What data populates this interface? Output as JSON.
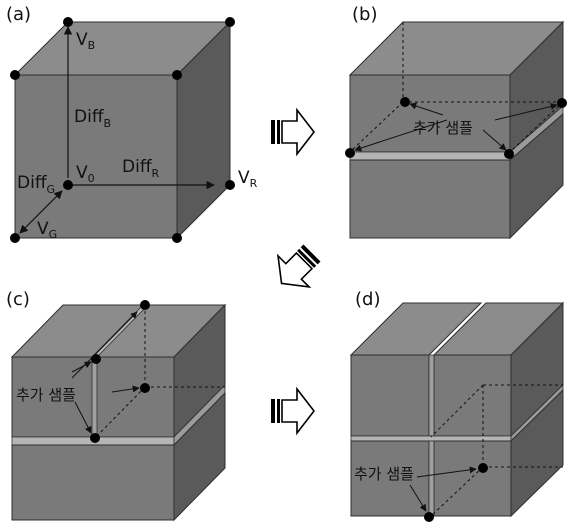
{
  "panels": {
    "a": "(a)",
    "b": "(b)",
    "c": "(c)",
    "d": "(d)"
  },
  "labels": {
    "v_base": "V",
    "v_b_sub": "B",
    "v_0_sub": "0",
    "v_r_sub": "R",
    "v_g_sub": "G",
    "diff_base": "Diff",
    "diff_b_sub": "B",
    "diff_r_sub": "R",
    "diff_g_sub": "G",
    "added_sample": "추가 샘플"
  },
  "colors": {
    "front_face": "#7a7a7a",
    "top_face": "#8c8c8c",
    "side_face": "#5a5a5a",
    "edge": "#2f2f2f",
    "gap": "#b5b5b5",
    "point": "#000000"
  },
  "icons": [
    "flow-arrow-right-icon",
    "flow-arrow-down-left-icon",
    "flow-arrow-right-icon"
  ]
}
